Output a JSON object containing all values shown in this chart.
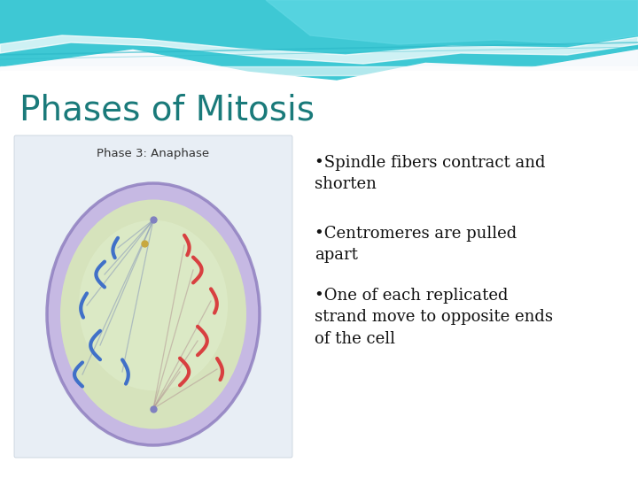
{
  "title": "Phases of Mitosis",
  "title_color": "#1a7a7a",
  "title_fontsize": 28,
  "bullet_points": [
    "•Spindle fibers contract and\nshorten",
    "•Centromeres are pulled\napart",
    "•One of each replicated\nstrand move to opposite ends\nof the cell"
  ],
  "bullet_fontsize": 13,
  "bullet_color": "#111111",
  "bg_color": "#f0f5fa",
  "wave_color1": "#4accd8",
  "wave_color2": "#2ab0c8",
  "image_label": "Phase 3: Anaphase",
  "cell_outer_color": "#b0a0d8",
  "cell_inner_color": "#d8e8c0",
  "cell_box_color": "#e8eef5"
}
